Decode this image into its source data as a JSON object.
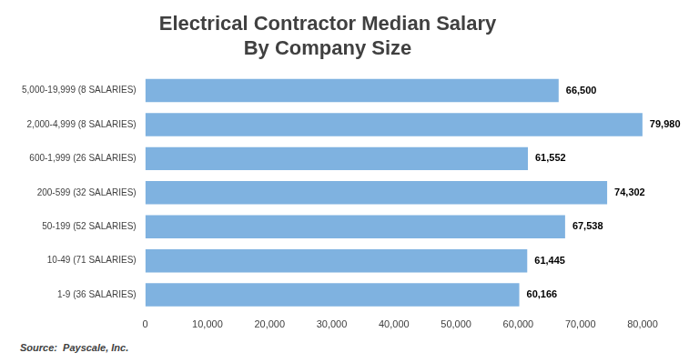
{
  "chart_data": {
    "type": "bar",
    "orientation": "horizontal",
    "title": [
      "Electrical Contractor Median Salary",
      "By Company Size"
    ],
    "categories": [
      "5,000-19,999 (8 SALARIES)",
      "2,000-4,999 (8 SALARIES)",
      "600-1,999 (26 SALARIES)",
      "200-599 (32 SALARIES)",
      "50-199 (52 SALARIES)",
      "10-49 (71 SALARIES)",
      "1-9 (36 SALARIES)"
    ],
    "values": [
      66500,
      79980,
      61552,
      74302,
      67538,
      61445,
      60166
    ],
    "value_labels": [
      "66,500",
      "79,980",
      "61,552",
      "74,302",
      "67,538",
      "61,445",
      "60,166"
    ],
    "data_labels": true,
    "color": "#7fb2e0",
    "xlim": [
      0,
      80000
    ],
    "xticks": [
      0,
      {
        "value": 10000,
        "label": "10,000"
      },
      {
        "value": 20000,
        "label": "20,000"
      },
      {
        "value": 30000,
        "label": "30,000"
      },
      {
        "value": 40000,
        "label": "40,000"
      },
      {
        "value": 50000,
        "label": "50,000"
      },
      {
        "value": 60000,
        "label": "60,000"
      },
      {
        "value": 70000,
        "label": "70,000"
      },
      {
        "value": 80000,
        "label": "80,000"
      }
    ],
    "grid": false,
    "annotation": "Source:  Payscale, Inc."
  }
}
